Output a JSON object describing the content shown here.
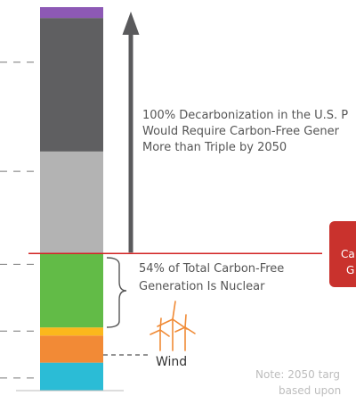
{
  "chart_data": {
    "type": "bar",
    "orientation": "vertical-stacked",
    "stack": [
      {
        "name": "",
        "color": "#2bbcd6",
        "value": 3.1
      },
      {
        "name": "",
        "color": "#f28a36",
        "value": 3.0
      },
      {
        "name": "",
        "color": "#fbb81c",
        "value": 0.9
      },
      {
        "name": "",
        "color": "#62bb47",
        "value": 8.2
      },
      {
        "name": "",
        "color": "#b3b3b3",
        "value": 11.3
      },
      {
        "name": "",
        "color": "#5f5f61",
        "value": 14.8
      },
      {
        "name": "",
        "color": "#8d59b5",
        "value": 1.2
      }
    ],
    "ylim": [
      0,
      42.5
    ],
    "reference_level": 15.2,
    "arrow_top": 42.0,
    "gridline_values": [
      1.4,
      6.6,
      14.0,
      24.3,
      36.4
    ],
    "reference_line_color": "#d22222",
    "arrow_color": "#5a5a5c",
    "grid": false
  },
  "annotations": {
    "decarbonization": [
      "100% Decarbonization in the U.S. P",
      "Would Require Carbon-Free Gener",
      "More than Triple by 2050"
    ],
    "nuclear_share": [
      "54% of Total Carbon-Free",
      "Generation Is Nuclear"
    ],
    "wind_label": "Wind",
    "callout_lines": [
      "Ca",
      "G"
    ],
    "callout_color": "#c9322d",
    "note_lines": [
      "Note: 2050 targ",
      "based upon"
    ]
  },
  "icons": {
    "wind": "wind-turbines-icon"
  },
  "colors": {
    "text": "#555555",
    "note": "#bdbdbd",
    "wind_icon": "#f08a35"
  }
}
